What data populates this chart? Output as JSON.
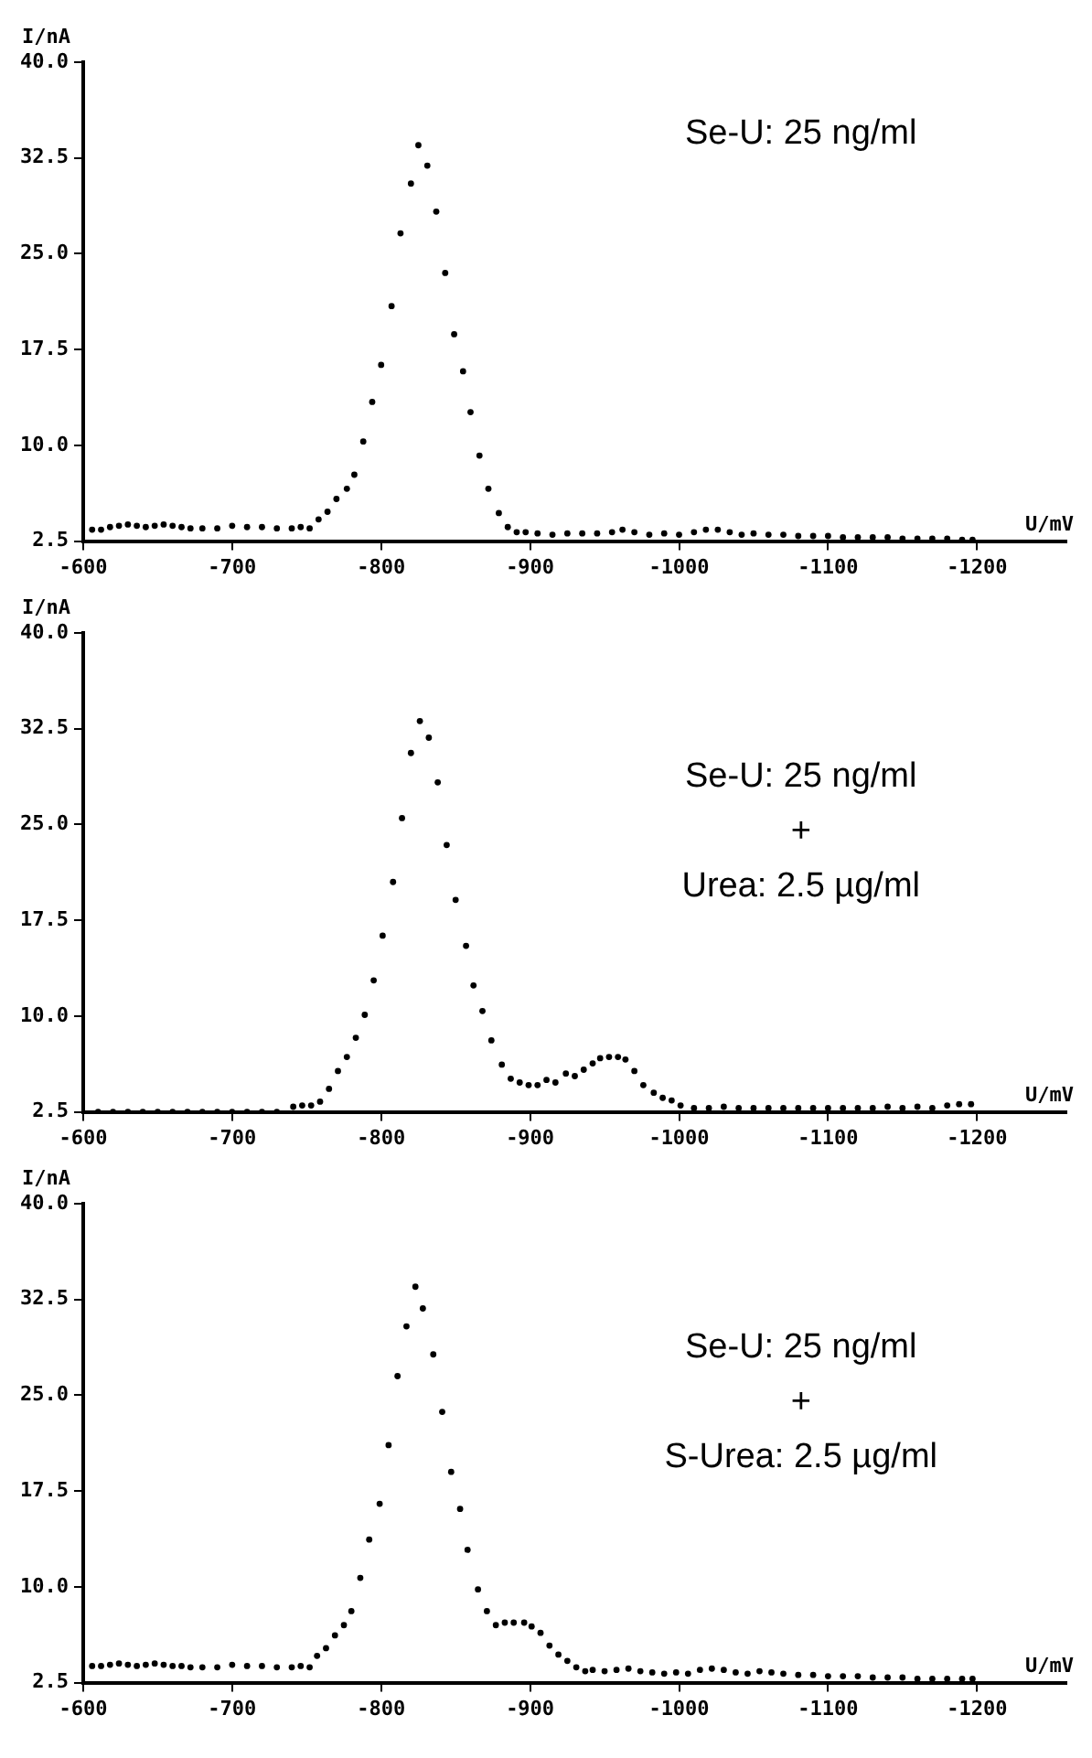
{
  "chart_data": [
    {
      "type": "scatter",
      "xlabel": "U/mV",
      "ylabel": "I/nA",
      "color": "#000000",
      "marker": "circle",
      "grid": false,
      "legend": false,
      "xlim": [
        -600,
        -1260
      ],
      "xticks": [
        -600,
        -700,
        -800,
        -900,
        -1000,
        -1100,
        -1200
      ],
      "ylim": [
        2.5,
        40
      ],
      "yticks": [
        {
          "value": 2.5,
          "label": "2.5"
        },
        {
          "value": 10,
          "label": "10.0"
        },
        {
          "value": 17.5,
          "label": "17.5"
        },
        {
          "value": 25,
          "label": "25.0"
        },
        {
          "value": 32.5,
          "label": "32.5"
        },
        {
          "value": 40,
          "label": "40.0"
        }
      ],
      "annotations": [
        "Se-U: 25 ng/ml"
      ],
      "x": [
        -606,
        -612,
        -618,
        -624,
        -630,
        -636,
        -642,
        -648,
        -654,
        -660,
        -666,
        -672,
        -680,
        -690,
        -700,
        -710,
        -720,
        -730,
        -740,
        -746,
        -752,
        -758,
        -764,
        -770,
        -777,
        -782,
        -788,
        -794,
        -800,
        -807,
        -813,
        -820,
        -825,
        -831,
        -837,
        -843,
        -849,
        -855,
        -860,
        -866,
        -872,
        -879,
        -885,
        -891,
        -897,
        -905,
        -915,
        -925,
        -935,
        -945,
        -955,
        -962,
        -970,
        -980,
        -990,
        -1000,
        -1010,
        -1018,
        -1026,
        -1034,
        -1042,
        -1050,
        -1060,
        -1070,
        -1080,
        -1090,
        -1100,
        -1110,
        -1120,
        -1130,
        -1140,
        -1150,
        -1160,
        -1170,
        -1180,
        -1190,
        -1197
      ],
      "values": [
        3.4,
        3.4,
        3.6,
        3.7,
        3.8,
        3.7,
        3.6,
        3.7,
        3.8,
        3.7,
        3.6,
        3.5,
        3.5,
        3.5,
        3.7,
        3.6,
        3.6,
        3.5,
        3.5,
        3.6,
        3.5,
        4.2,
        4.8,
        5.8,
        6.6,
        7.7,
        10.3,
        13.4,
        16.3,
        20.9,
        26.6,
        30.5,
        33.5,
        31.9,
        28.3,
        23.5,
        18.7,
        15.8,
        12.6,
        9.2,
        6.6,
        4.7,
        3.6,
        3.2,
        3.2,
        3.1,
        3.0,
        3.1,
        3.1,
        3.1,
        3.2,
        3.4,
        3.2,
        3.0,
        3.1,
        3.0,
        3.2,
        3.4,
        3.4,
        3.2,
        3.0,
        3.1,
        3.0,
        3.0,
        2.9,
        2.9,
        2.9,
        2.8,
        2.8,
        2.8,
        2.8,
        2.7,
        2.7,
        2.7,
        2.7,
        2.6,
        2.6
      ]
    },
    {
      "type": "scatter",
      "xlabel": "U/mV",
      "ylabel": "I/nA",
      "color": "#000000",
      "marker": "circle",
      "grid": false,
      "legend": false,
      "xlim": [
        -600,
        -1260
      ],
      "xticks": [
        -600,
        -700,
        -800,
        -900,
        -1000,
        -1100,
        -1200
      ],
      "ylim": [
        2.5,
        40
      ],
      "yticks": [
        {
          "value": 2.5,
          "label": "2.5"
        },
        {
          "value": 10,
          "label": "10.0"
        },
        {
          "value": 17.5,
          "label": "17.5"
        },
        {
          "value": 25,
          "label": "25.0"
        },
        {
          "value": 32.5,
          "label": "32.5"
        },
        {
          "value": 40,
          "label": "40.0"
        }
      ],
      "annotations": [
        "Se-U: 25 ng/ml",
        "+",
        "Urea: 2.5 µg/ml"
      ],
      "x": [
        -610,
        -620,
        -630,
        -640,
        -650,
        -660,
        -670,
        -680,
        -690,
        -700,
        -710,
        -720,
        -730,
        -741,
        -747,
        -753,
        -759,
        -765,
        -771,
        -777,
        -783,
        -789,
        -795,
        -801,
        -808,
        -814,
        -820,
        -826,
        -832,
        -838,
        -844,
        -850,
        -857,
        -862,
        -868,
        -874,
        -881,
        -887,
        -893,
        -899,
        -905,
        -911,
        -917,
        -924,
        -930,
        -936,
        -942,
        -947,
        -953,
        -959,
        -964,
        -970,
        -976,
        -983,
        -989,
        -995,
        -1001,
        -1010,
        -1020,
        -1030,
        -1040,
        -1050,
        -1060,
        -1070,
        -1080,
        -1090,
        -1100,
        -1110,
        -1120,
        -1130,
        -1140,
        -1150,
        -1160,
        -1170,
        -1180,
        -1188,
        -1196
      ],
      "values": [
        2.5,
        2.5,
        2.5,
        2.5,
        2.5,
        2.5,
        2.5,
        2.5,
        2.5,
        2.5,
        2.5,
        2.5,
        2.5,
        2.9,
        3.0,
        3.0,
        3.3,
        4.3,
        5.7,
        6.8,
        8.3,
        10.1,
        12.8,
        16.3,
        20.5,
        25.5,
        30.6,
        33.1,
        31.8,
        28.3,
        23.4,
        19.1,
        15.5,
        12.4,
        10.4,
        8.1,
        6.2,
        5.1,
        4.8,
        4.6,
        4.6,
        5.0,
        4.8,
        5.5,
        5.3,
        5.8,
        6.3,
        6.7,
        6.8,
        6.8,
        6.6,
        5.7,
        4.6,
        4.0,
        3.6,
        3.4,
        3.0,
        2.8,
        2.8,
        2.9,
        2.8,
        2.8,
        2.8,
        2.8,
        2.8,
        2.8,
        2.8,
        2.8,
        2.8,
        2.8,
        2.9,
        2.8,
        2.9,
        2.8,
        3.0,
        3.1,
        3.1
      ]
    },
    {
      "type": "scatter",
      "xlabel": "U/mV",
      "ylabel": "I/nA",
      "color": "#000000",
      "marker": "circle",
      "grid": false,
      "legend": false,
      "xlim": [
        -600,
        -1260
      ],
      "xticks": [
        -600,
        -700,
        -800,
        -900,
        -1000,
        -1100,
        -1200
      ],
      "ylim": [
        2.5,
        40
      ],
      "yticks": [
        {
          "value": 2.5,
          "label": "2.5"
        },
        {
          "value": 10,
          "label": "10.0"
        },
        {
          "value": 17.5,
          "label": "17.5"
        },
        {
          "value": 25,
          "label": "25.0"
        },
        {
          "value": 32.5,
          "label": "32.5"
        },
        {
          "value": 40,
          "label": "40.0"
        }
      ],
      "annotations": [
        "Se-U: 25 ng/ml",
        "+",
        "S-Urea: 2.5 µg/ml"
      ],
      "x": [
        -606,
        -612,
        -618,
        -624,
        -630,
        -636,
        -642,
        -648,
        -654,
        -660,
        -666,
        -672,
        -680,
        -690,
        -700,
        -710,
        -720,
        -730,
        -740,
        -746,
        -752,
        -757,
        -763,
        -769,
        -775,
        -780,
        -786,
        -792,
        -799,
        -805,
        -811,
        -817,
        -823,
        -828,
        -835,
        -841,
        -847,
        -853,
        -858,
        -865,
        -871,
        -877,
        -883,
        -889,
        -896,
        -901,
        -907,
        -913,
        -919,
        -925,
        -931,
        -937,
        -942,
        -950,
        -958,
        -966,
        -974,
        -982,
        -990,
        -998,
        -1006,
        -1014,
        -1022,
        -1030,
        -1038,
        -1046,
        -1054,
        -1062,
        -1070,
        -1080,
        -1090,
        -1100,
        -1110,
        -1120,
        -1130,
        -1140,
        -1150,
        -1160,
        -1170,
        -1180,
        -1190,
        -1197
      ],
      "values": [
        3.8,
        3.8,
        3.9,
        4.0,
        3.9,
        3.8,
        3.9,
        4.0,
        3.9,
        3.8,
        3.8,
        3.7,
        3.7,
        3.7,
        3.9,
        3.8,
        3.8,
        3.7,
        3.7,
        3.8,
        3.7,
        4.6,
        5.2,
        6.2,
        7.0,
        8.1,
        10.7,
        13.7,
        16.5,
        21.1,
        26.5,
        30.4,
        33.5,
        31.8,
        28.2,
        23.7,
        19.0,
        16.1,
        12.9,
        9.8,
        8.1,
        7.0,
        7.2,
        7.2,
        7.2,
        6.9,
        6.4,
        5.4,
        4.7,
        4.2,
        3.7,
        3.4,
        3.5,
        3.4,
        3.5,
        3.6,
        3.4,
        3.3,
        3.2,
        3.3,
        3.2,
        3.5,
        3.6,
        3.5,
        3.3,
        3.2,
        3.4,
        3.3,
        3.2,
        3.1,
        3.1,
        3.0,
        3.0,
        3.0,
        2.9,
        2.9,
        2.9,
        2.8,
        2.8,
        2.8,
        2.8,
        2.8
      ]
    }
  ]
}
